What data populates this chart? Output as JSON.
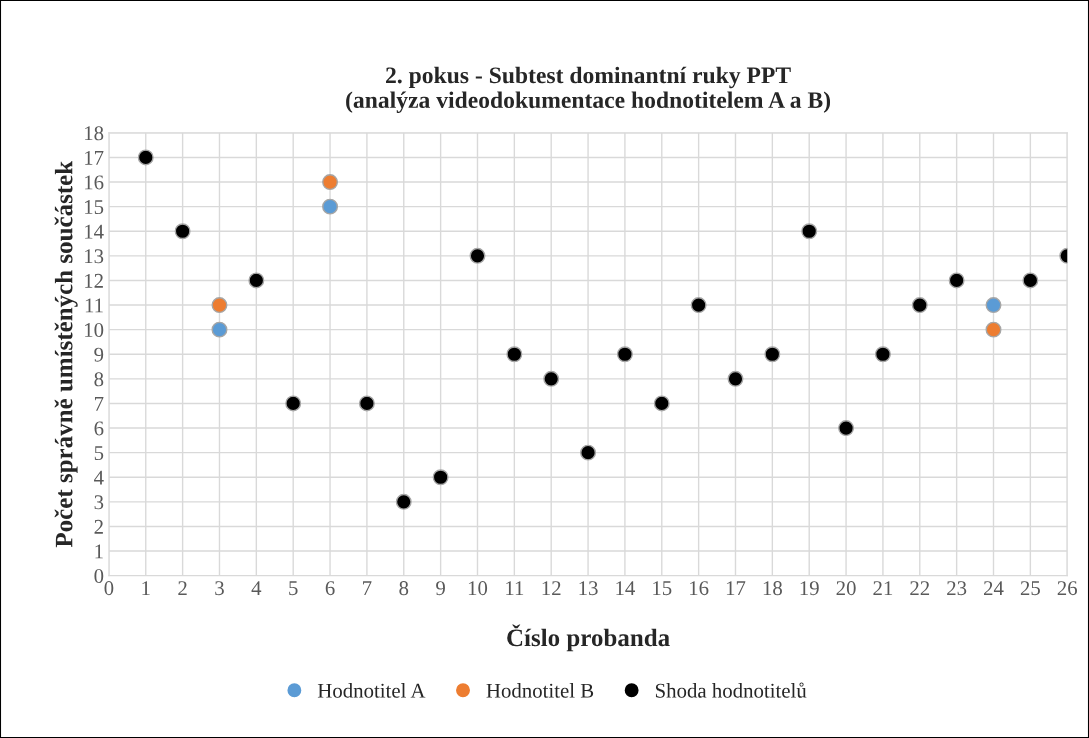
{
  "chart_data": {
    "type": "scatter",
    "title": "2. pokus - Subtest dominantní ruky PPT\n(analýza videodokumentace hodnotitelem A a B)",
    "xlabel": "Číslo probanda",
    "ylabel": "Počet správně umístěných součástek",
    "series": [
      {
        "name": "Hodnotitel A",
        "color": "#5b9bd5",
        "x": [
          3,
          6,
          24
        ],
        "values": [
          10,
          15,
          11
        ]
      },
      {
        "name": "Hodnotitel B",
        "color": "#ed7d31",
        "x": [
          3,
          6,
          24
        ],
        "values": [
          11,
          16,
          10
        ]
      },
      {
        "name": "Shoda hodnotitelů",
        "color": "#000000",
        "x": [
          1,
          2,
          4,
          5,
          7,
          8,
          9,
          10,
          11,
          12,
          13,
          14,
          15,
          16,
          17,
          18,
          19,
          20,
          21,
          22,
          23,
          25,
          26
        ],
        "values": [
          17,
          14,
          12,
          7,
          7,
          3,
          4,
          13,
          9,
          8,
          5,
          9,
          7,
          11,
          8,
          9,
          14,
          6,
          9,
          11,
          12,
          12,
          13
        ]
      }
    ],
    "xlim": [
      0,
      26
    ],
    "xticks": [
      0,
      1,
      2,
      3,
      4,
      5,
      6,
      7,
      8,
      9,
      10,
      11,
      12,
      13,
      14,
      15,
      16,
      17,
      18,
      19,
      20,
      21,
      22,
      23,
      24,
      25,
      26
    ],
    "ylim": [
      0,
      18
    ],
    "yticks": [
      0,
      1,
      2,
      3,
      4,
      5,
      6,
      7,
      8,
      9,
      10,
      11,
      12,
      13,
      14,
      15,
      16,
      17,
      18
    ],
    "grid": true,
    "legend": "bottom",
    "marker": "circle"
  }
}
